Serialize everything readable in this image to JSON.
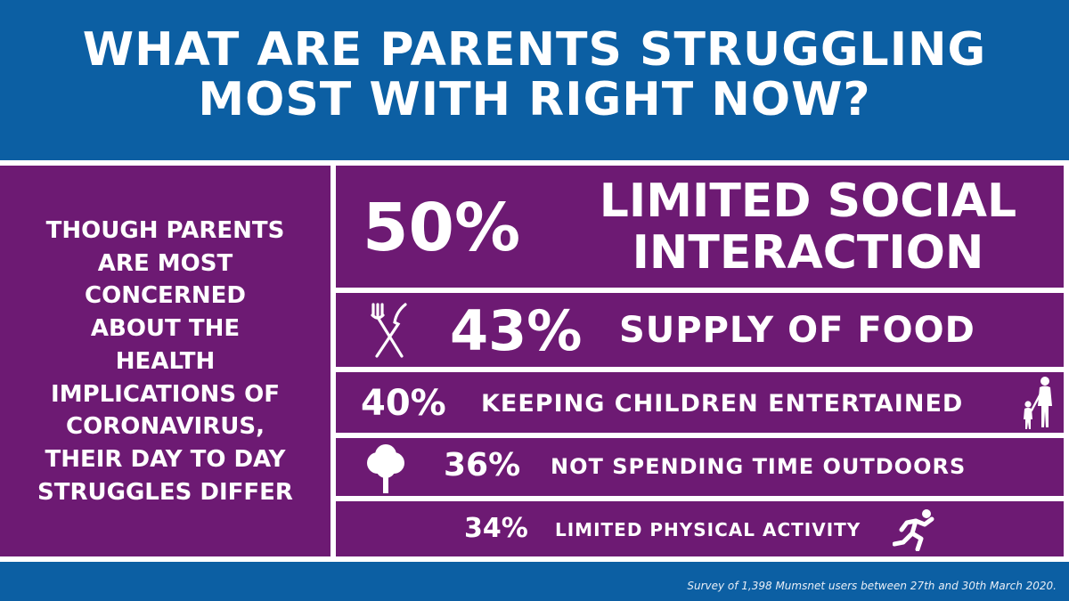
{
  "title": {
    "line1": "WHAT ARE PARENTS STRUGGLING",
    "line2": "MOST WITH RIGHT NOW?"
  },
  "left_panel": {
    "lines": [
      "THOUGH PARENTS",
      "ARE MOST",
      "CONCERNED",
      "ABOUT THE",
      "HEALTH",
      "IMPLICATIONS OF",
      "CORONAVIRUS,",
      "THEIR DAY TO DAY",
      "STRUGGLES DIFFER"
    ]
  },
  "stats": [
    {
      "percent": "50%",
      "label_lines": [
        "LIMITED SOCIAL",
        "INTERACTION"
      ],
      "icon": "none"
    },
    {
      "percent": "43%",
      "label_lines": [
        "SUPPLY OF FOOD"
      ],
      "icon": "fork-knife-icon"
    },
    {
      "percent": "40%",
      "label_lines": [
        "KEEPING CHILDREN ENTERTAINED"
      ],
      "icon": "parent-child-icon"
    },
    {
      "percent": "36%",
      "label_lines": [
        "NOT SPENDING TIME OUTDOORS"
      ],
      "icon": "tree-icon"
    },
    {
      "percent": "34%",
      "label_lines": [
        "LIMITED PHYSICAL ACTIVITY"
      ],
      "icon": "runner-icon"
    }
  ],
  "footer": {
    "source": "Survey of 1,398 Mumsnet users between 27th and 30th March 2020."
  },
  "colors": {
    "blue_background": "#0c5fa3",
    "purple_panel": "#6d1a73",
    "text": "#ffffff"
  }
}
